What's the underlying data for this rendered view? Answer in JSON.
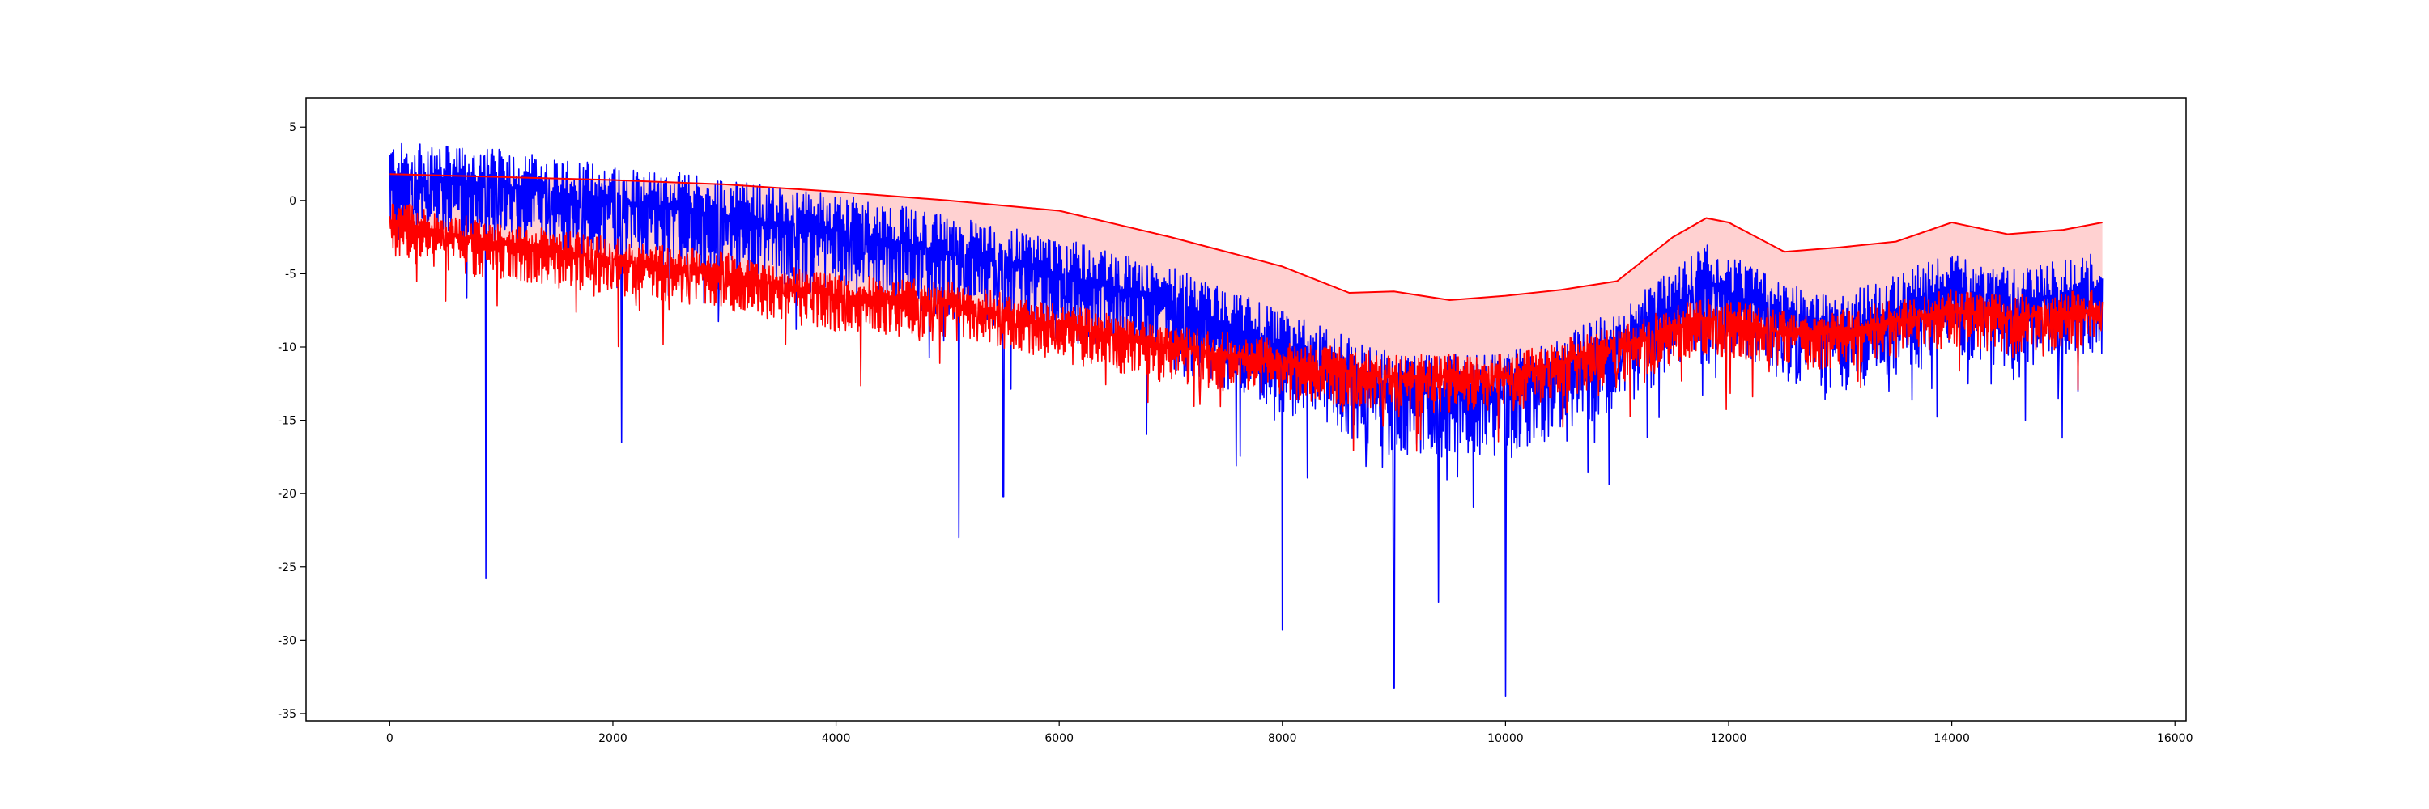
{
  "chart_data": {
    "type": "line",
    "title": "",
    "xlabel": "",
    "ylabel": "",
    "xlim": [
      -750,
      16100
    ],
    "ylim": [
      -35.5,
      7
    ],
    "xticks": [
      0,
      2000,
      4000,
      6000,
      8000,
      10000,
      12000,
      14000,
      16000
    ],
    "yticks": [
      5,
      0,
      -5,
      -10,
      -15,
      -20,
      -25,
      -30,
      -35
    ],
    "grid": false,
    "legend": "none",
    "colors": {
      "blue_series": "#0000ff",
      "red_series": "#ff0000",
      "frame": "#000000"
    },
    "x_range": [
      0,
      15350
    ],
    "series": [
      {
        "color": "#0000ff",
        "style": "noisy",
        "trend": [
          [
            0,
            1.5
          ],
          [
            1000,
            1
          ],
          [
            2000,
            0
          ],
          [
            3000,
            -1
          ],
          [
            4000,
            -2
          ],
          [
            5000,
            -3.5
          ],
          [
            6000,
            -5
          ],
          [
            7000,
            -7
          ],
          [
            8000,
            -10
          ],
          [
            9000,
            -13
          ],
          [
            10000,
            -13
          ],
          [
            11000,
            -10
          ],
          [
            11800,
            -5.5
          ],
          [
            12500,
            -8
          ],
          [
            13000,
            -9
          ],
          [
            14000,
            -6
          ],
          [
            14500,
            -7
          ],
          [
            15350,
            -6
          ]
        ],
        "noise_up": 2.5,
        "noise_down": 4.5,
        "spikes": [
          [
            860,
            -25.8
          ],
          [
            2080,
            -16.5
          ],
          [
            5100,
            -23
          ],
          [
            8000,
            -29.3
          ],
          [
            9000,
            -33.3
          ],
          [
            10000,
            -33.8
          ],
          [
            9400,
            -27.4
          ],
          [
            5500,
            -20.2
          ]
        ]
      },
      {
        "color": "#ff0000",
        "style": "noisy",
        "trend": [
          [
            0,
            -1.5
          ],
          [
            1000,
            -3
          ],
          [
            2000,
            -4
          ],
          [
            3000,
            -5
          ],
          [
            4000,
            -6.5
          ],
          [
            5000,
            -7
          ],
          [
            6000,
            -8.5
          ],
          [
            7000,
            -10
          ],
          [
            8000,
            -11
          ],
          [
            9000,
            -12
          ],
          [
            10000,
            -12
          ],
          [
            11000,
            -10
          ],
          [
            11800,
            -8
          ],
          [
            12500,
            -9
          ],
          [
            13000,
            -9
          ],
          [
            14000,
            -7.5
          ],
          [
            14500,
            -8
          ],
          [
            15350,
            -7.5
          ]
        ],
        "noise_up": 1.5,
        "noise_down": 2.5
      },
      {
        "color": "#ff0000",
        "style": "smooth",
        "points": [
          [
            0,
            1.8
          ],
          [
            1000,
            1.6
          ],
          [
            2000,
            1.4
          ],
          [
            3000,
            1.1
          ],
          [
            4000,
            0.6
          ],
          [
            5000,
            0
          ],
          [
            6000,
            -0.7
          ],
          [
            7000,
            -2.5
          ],
          [
            8000,
            -4.5
          ],
          [
            8600,
            -6.3
          ],
          [
            9000,
            -6.2
          ],
          [
            9500,
            -6.8
          ],
          [
            10000,
            -6.5
          ],
          [
            10500,
            -6.1
          ],
          [
            11000,
            -5.5
          ],
          [
            11500,
            -2.5
          ],
          [
            11800,
            -1.2
          ],
          [
            12000,
            -1.5
          ],
          [
            12500,
            -3.5
          ],
          [
            13000,
            -3.2
          ],
          [
            13500,
            -2.8
          ],
          [
            14000,
            -1.5
          ],
          [
            14500,
            -2.3
          ],
          [
            15000,
            -2
          ],
          [
            15350,
            -1.5
          ]
        ]
      }
    ]
  }
}
